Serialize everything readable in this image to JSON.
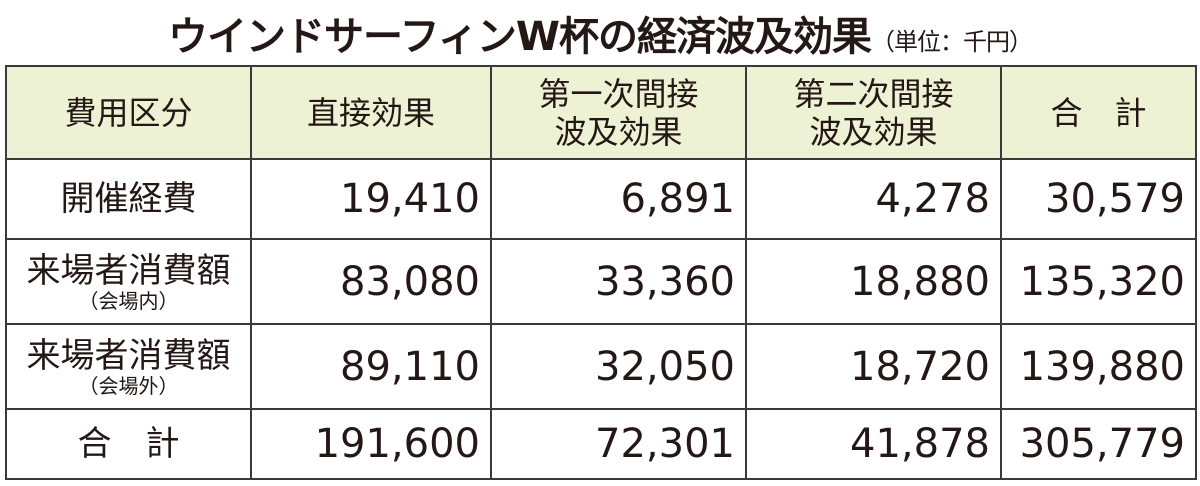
{
  "title": "ウインドサーフィンW杯の経済波及効果",
  "unit": "（単位：千円）",
  "table": {
    "header": [
      [
        "費用区分"
      ],
      [
        "直接効果"
      ],
      [
        "第一次間接",
        "波及効果"
      ],
      [
        "第二次間接",
        "波及効果"
      ],
      [
        "合　計"
      ]
    ],
    "rows": [
      {
        "label": "開催経費",
        "values": [
          "19,410",
          "6,891",
          "4,278",
          "30,579"
        ]
      },
      {
        "label": "来場者消費額",
        "note": "（会場内）",
        "values": [
          "83,080",
          "33,360",
          "18,880",
          "135,320"
        ]
      },
      {
        "label": "来場者消費額",
        "note": "（会場外）",
        "values": [
          "89,110",
          "32,050",
          "18,720",
          "139,880"
        ]
      },
      {
        "label": "合　計",
        "values": [
          "191,600",
          "72,301",
          "41,878",
          "305,779"
        ]
      }
    ]
  }
}
